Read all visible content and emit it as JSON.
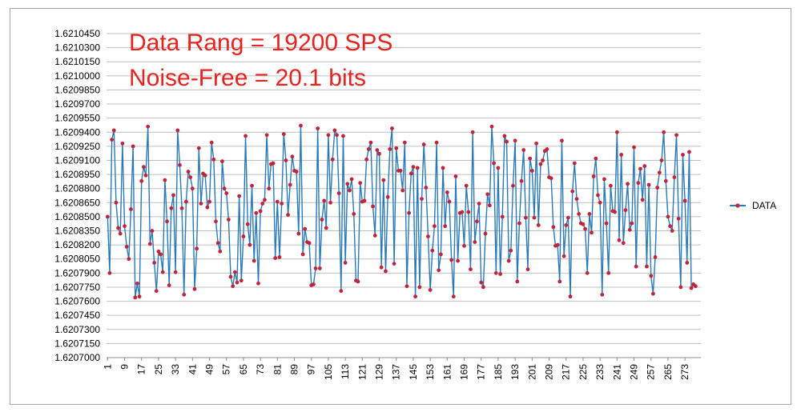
{
  "chart_data": {
    "type": "line",
    "annotations": [
      "Data Rang = 19200 SPS",
      "Noise-Free = 20.1 bits"
    ],
    "ylim": [
      1.6207,
      1.621045
    ],
    "yticks": [
      "1.6210450",
      "1.6210300",
      "1.6210150",
      "1.6210000",
      "1.6209850",
      "1.6209700",
      "1.6209550",
      "1.6209400",
      "1.6209250",
      "1.6209100",
      "1.6208950",
      "1.6208800",
      "1.6208650",
      "1.6208500",
      "1.6208350",
      "1.6208200",
      "1.6208050",
      "1.6207900",
      "1.6207750",
      "1.6207600",
      "1.6207450",
      "1.6207300",
      "1.6207150",
      "1.6207000"
    ],
    "x_range": [
      1,
      280
    ],
    "xticks": [
      1,
      9,
      17,
      25,
      33,
      41,
      49,
      57,
      65,
      73,
      81,
      89,
      97,
      105,
      113,
      121,
      129,
      137,
      145,
      153,
      161,
      169,
      177,
      185,
      193,
      201,
      209,
      217,
      225,
      233,
      241,
      249,
      257,
      265,
      273
    ],
    "grid": true,
    "legend_position": "right",
    "colors": {
      "line": "#2a7ab8",
      "marker": "#c0253a",
      "annotation": "#e8231f",
      "grid": "#bfbfbf"
    },
    "series": [
      {
        "name": "DATA",
        "values": [
          1.62085,
          1.62079,
          1.620932,
          1.620942,
          1.620865,
          1.620838,
          1.620832,
          1.620928,
          1.62084,
          1.620818,
          1.620805,
          1.620858,
          1.620925,
          1.620764,
          1.620779,
          1.620765,
          1.620888,
          1.620903,
          1.620894,
          1.620946,
          1.620821,
          1.620835,
          1.620801,
          1.620771,
          1.620813,
          1.62081,
          1.620791,
          1.620889,
          1.620845,
          1.620777,
          1.620859,
          1.620873,
          1.620791,
          1.620942,
          1.620905,
          1.620859,
          1.620767,
          1.620866,
          1.620898,
          1.620892,
          1.62088,
          1.620773,
          1.620816,
          1.620923,
          1.620864,
          1.620896,
          1.620894,
          1.62086,
          1.620866,
          1.620929,
          1.620911,
          1.620845,
          1.620822,
          1.620813,
          1.620909,
          1.62088,
          1.620875,
          1.620847,
          1.620786,
          1.620776,
          1.620791,
          1.62078,
          1.620872,
          1.620782,
          1.620829,
          1.620936,
          1.620842,
          1.62082,
          1.620883,
          1.620803,
          1.620854,
          1.620779,
          1.620856,
          1.620864,
          1.620868,
          1.620937,
          1.62088,
          1.620906,
          1.620907,
          1.620806,
          1.620866,
          1.620807,
          1.620864,
          1.620938,
          1.62091,
          1.620852,
          1.620884,
          1.620914,
          1.620899,
          1.620898,
          1.620832,
          1.620947,
          1.62081,
          1.620837,
          1.620823,
          1.620822,
          1.620777,
          1.620778,
          1.620795,
          1.620944,
          1.620795,
          1.620847,
          1.620867,
          1.620838,
          1.620937,
          1.620865,
          1.620911,
          1.620942,
          1.620937,
          1.620875,
          1.620771,
          1.620936,
          1.620801,
          1.620885,
          1.620878,
          1.62089,
          1.620853,
          1.620782,
          1.620781,
          1.620886,
          1.620866,
          1.620867,
          1.620911,
          1.620922,
          1.620929,
          1.620861,
          1.62083,
          1.620921,
          1.620917,
          1.620796,
          1.620889,
          1.620792,
          1.620871,
          1.620922,
          1.620944,
          1.6208,
          1.620923,
          1.620899,
          1.620899,
          1.620878,
          1.620929,
          1.620776,
          1.620854,
          1.620896,
          1.620903,
          1.620765,
          1.620902,
          1.620775,
          1.620869,
          1.620927,
          1.620881,
          1.620829,
          1.620772,
          1.620814,
          1.62084,
          1.620929,
          1.620793,
          1.62081,
          1.620902,
          1.62084,
          1.620876,
          1.620866,
          1.620804,
          1.620765,
          1.620893,
          1.620803,
          1.620854,
          1.620855,
          1.620819,
          1.620883,
          1.620855,
          1.620794,
          1.62094,
          1.620823,
          1.620845,
          1.620864,
          1.62078,
          1.620775,
          1.620832,
          1.620874,
          1.620862,
          1.620946,
          1.620907,
          1.62079,
          1.620902,
          1.620789,
          1.62085,
          1.620936,
          1.62093,
          1.620803,
          1.620814,
          1.620883,
          1.620931,
          1.620781,
          1.620843,
          1.620888,
          1.620921,
          1.620849,
          1.620794,
          1.620912,
          1.620899,
          1.620849,
          1.620928,
          1.620841,
          1.620906,
          1.62091,
          1.62092,
          1.620922,
          1.620892,
          1.620891,
          1.620839,
          1.620819,
          1.62082,
          1.620781,
          1.620931,
          1.620808,
          1.620841,
          1.620849,
          1.620765,
          1.620877,
          1.620907,
          1.620869,
          1.620853,
          1.620843,
          1.620842,
          1.620837,
          1.62079,
          1.620853,
          1.620833,
          1.620893,
          1.620912,
          1.620873,
          1.620865,
          1.620767,
          1.62089,
          1.620843,
          1.62079,
          1.620883,
          1.620856,
          1.620855,
          1.62094,
          1.620825,
          1.620916,
          1.620822,
          1.620857,
          1.620885,
          1.620836,
          1.620843,
          1.620924,
          1.620797,
          1.620886,
          1.620901,
          1.620868,
          1.620904,
          1.620797,
          1.620884,
          1.620787,
          1.620768,
          1.620807,
          1.620881,
          1.620897,
          1.62091,
          1.62094,
          1.620888,
          1.62085,
          1.62084,
          1.620835,
          1.620892,
          1.620937,
          1.620848,
          1.620775,
          1.620916,
          1.620867,
          1.620801,
          1.620919,
          1.620774,
          1.620778,
          1.620776
        ]
      }
    ],
    "legend": [
      {
        "label": "DATA"
      }
    ]
  }
}
